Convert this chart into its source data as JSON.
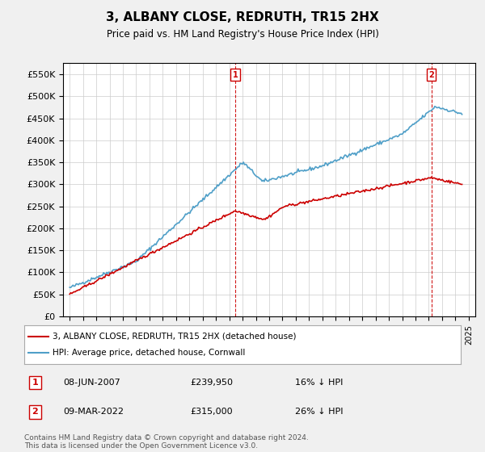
{
  "title": "3, ALBANY CLOSE, REDRUTH, TR15 2HX",
  "subtitle": "Price paid vs. HM Land Registry's House Price Index (HPI)",
  "hpi_color": "#4f9fc8",
  "price_color": "#cc0000",
  "vline_color": "#cc0000",
  "background_color": "#f0f0f0",
  "plot_bg_color": "#ffffff",
  "ylim": [
    0,
    575000
  ],
  "yticks": [
    0,
    50000,
    100000,
    150000,
    200000,
    250000,
    300000,
    350000,
    400000,
    450000,
    500000,
    550000
  ],
  "xlim_start": 1994.5,
  "xlim_end": 2025.5,
  "legend_entries": [
    {
      "label": "3, ALBANY CLOSE, REDRUTH, TR15 2HX (detached house)",
      "color": "#cc0000"
    },
    {
      "label": "HPI: Average price, detached house, Cornwall",
      "color": "#4f9fc8"
    }
  ],
  "annotations": [
    {
      "num": "1",
      "date": "08-JUN-2007",
      "price": "£239,950",
      "pct": "16% ↓ HPI",
      "x_year": 2007.44
    },
    {
      "num": "2",
      "date": "09-MAR-2022",
      "price": "£315,000",
      "pct": "26% ↓ HPI",
      "x_year": 2022.19
    }
  ],
  "footer": "Contains HM Land Registry data © Crown copyright and database right 2024.\nThis data is licensed under the Open Government Licence v3.0."
}
